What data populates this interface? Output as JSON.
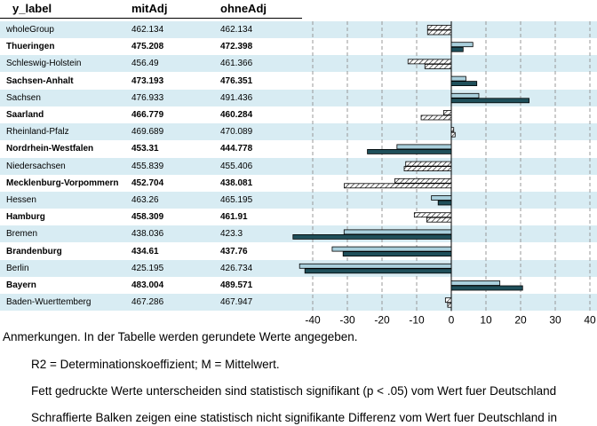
{
  "chart_data": {
    "type": "bar",
    "orientation": "horizontal",
    "columns": [
      "y_label",
      "mitAdj",
      "ohneAdj"
    ],
    "reference_value": 468.99,
    "xlim": [
      -40,
      40
    ],
    "x_ticks": [
      "-40",
      "-30",
      "-20",
      "-10",
      "0",
      "10",
      "20",
      "30",
      "40"
    ],
    "grid": "vertical dashed",
    "rows": [
      {
        "label": "wholeGroup",
        "mitAdj": "462.134",
        "ohneAdj": "462.134",
        "bold": false,
        "significant": false
      },
      {
        "label": "Thueringen",
        "mitAdj": "475.208",
        "ohneAdj": "472.398",
        "bold": true,
        "significant": true
      },
      {
        "label": "Schleswig-Holstein",
        "mitAdj": "456.49",
        "ohneAdj": "461.366",
        "bold": false,
        "significant": false
      },
      {
        "label": "Sachsen-Anhalt",
        "mitAdj": "473.193",
        "ohneAdj": "476.351",
        "bold": true,
        "significant": true
      },
      {
        "label": "Sachsen",
        "mitAdj": "476.933",
        "ohneAdj": "491.436",
        "bold": false,
        "significant": true
      },
      {
        "label": "Saarland",
        "mitAdj": "466.779",
        "ohneAdj": "460.284",
        "bold": true,
        "significant": false
      },
      {
        "label": "Rheinland-Pfalz",
        "mitAdj": "469.689",
        "ohneAdj": "470.089",
        "bold": false,
        "significant": false
      },
      {
        "label": "Nordrhein-Westfalen",
        "mitAdj": "453.31",
        "ohneAdj": "444.778",
        "bold": true,
        "significant": true
      },
      {
        "label": "Niedersachsen",
        "mitAdj": "455.839",
        "ohneAdj": "455.406",
        "bold": false,
        "significant": false
      },
      {
        "label": "Mecklenburg-Vorpommern",
        "mitAdj": "452.704",
        "ohneAdj": "438.081",
        "bold": true,
        "significant": false
      },
      {
        "label": "Hessen",
        "mitAdj": "463.26",
        "ohneAdj": "465.195",
        "bold": false,
        "significant": true
      },
      {
        "label": "Hamburg",
        "mitAdj": "458.309",
        "ohneAdj": "461.91",
        "bold": true,
        "significant": false
      },
      {
        "label": "Bremen",
        "mitAdj": "438.036",
        "ohneAdj": "423.3",
        "bold": false,
        "significant": true
      },
      {
        "label": "Brandenburg",
        "mitAdj": "434.61",
        "ohneAdj": "437.76",
        "bold": true,
        "significant": true
      },
      {
        "label": "Berlin",
        "mitAdj": "425.195",
        "ohneAdj": "426.734",
        "bold": false,
        "significant": true
      },
      {
        "label": "Bayern",
        "mitAdj": "483.004",
        "ohneAdj": "489.571",
        "bold": true,
        "significant": true
      },
      {
        "label": "Baden-Wuerttemberg",
        "mitAdj": "467.286",
        "ohneAdj": "467.947",
        "bold": false,
        "significant": false
      }
    ],
    "colors": {
      "row_shade": "#d8ecf3",
      "bar_mitAdj": "#a9cfdc",
      "bar_ohneAdj": "#1f4f5a",
      "bar_hatched_fill": "#ffffff",
      "bar_hatched_stroke": "#000000",
      "grid": "#999999"
    }
  },
  "notes": {
    "heading": "Anmerkungen. In der Tabelle werden gerundete Werte angegeben.",
    "line1": "R2 = Determinationskoeffizient; M = Mittelwert.",
    "line2": "Fett gedruckte Werte unterscheiden sind statistisch signifikant (p < .05) vom Wert fuer Deutschland",
    "line3": "Schraffierte Balken zeigen eine statistisch nicht signifikante Differenz vom Wert fuer Deutschland in"
  }
}
